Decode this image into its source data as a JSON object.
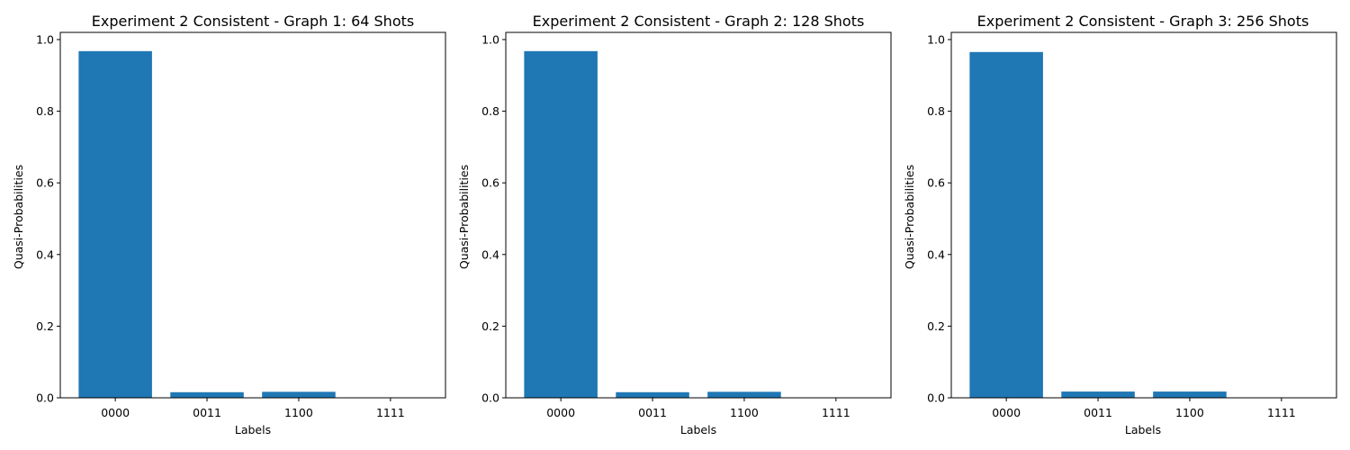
{
  "colors": {
    "bar": "#1f77b4",
    "background": "#ffffff",
    "axis": "#000000"
  },
  "chart_data": [
    {
      "type": "bar",
      "title": "Experiment 2 Consistent - Graph 1: 64 Shots",
      "xlabel": "Labels",
      "ylabel": "Quasi-Probabilities",
      "categories": [
        "0000",
        "0011",
        "1100",
        "1111"
      ],
      "values": [
        0.9677,
        0.0156,
        0.0167,
        0.0
      ],
      "ylim": [
        0,
        1.02
      ],
      "yticks": [
        "0.0",
        "0.2",
        "0.4",
        "0.6",
        "0.8",
        "1.0"
      ],
      "grid": false
    },
    {
      "type": "bar",
      "title": "Experiment 2 Consistent - Graph 2: 128 Shots",
      "xlabel": "Labels",
      "ylabel": "Quasi-Probabilities",
      "categories": [
        "0000",
        "0011",
        "1100",
        "1111"
      ],
      "values": [
        0.9677,
        0.0156,
        0.0167,
        0.0
      ],
      "ylim": [
        0,
        1.02
      ],
      "yticks": [
        "0.0",
        "0.2",
        "0.4",
        "0.6",
        "0.8",
        "1.0"
      ],
      "grid": false
    },
    {
      "type": "bar",
      "title": "Experiment 2 Consistent - Graph 3: 256 Shots",
      "xlabel": "Labels",
      "ylabel": "Quasi-Probabilities",
      "categories": [
        "0000",
        "0011",
        "1100",
        "1111"
      ],
      "values": [
        0.9652,
        0.0174,
        0.0174,
        0.0
      ],
      "ylim": [
        0,
        1.02
      ],
      "yticks": [
        "0.0",
        "0.2",
        "0.4",
        "0.6",
        "0.8",
        "1.0"
      ],
      "grid": false
    }
  ]
}
